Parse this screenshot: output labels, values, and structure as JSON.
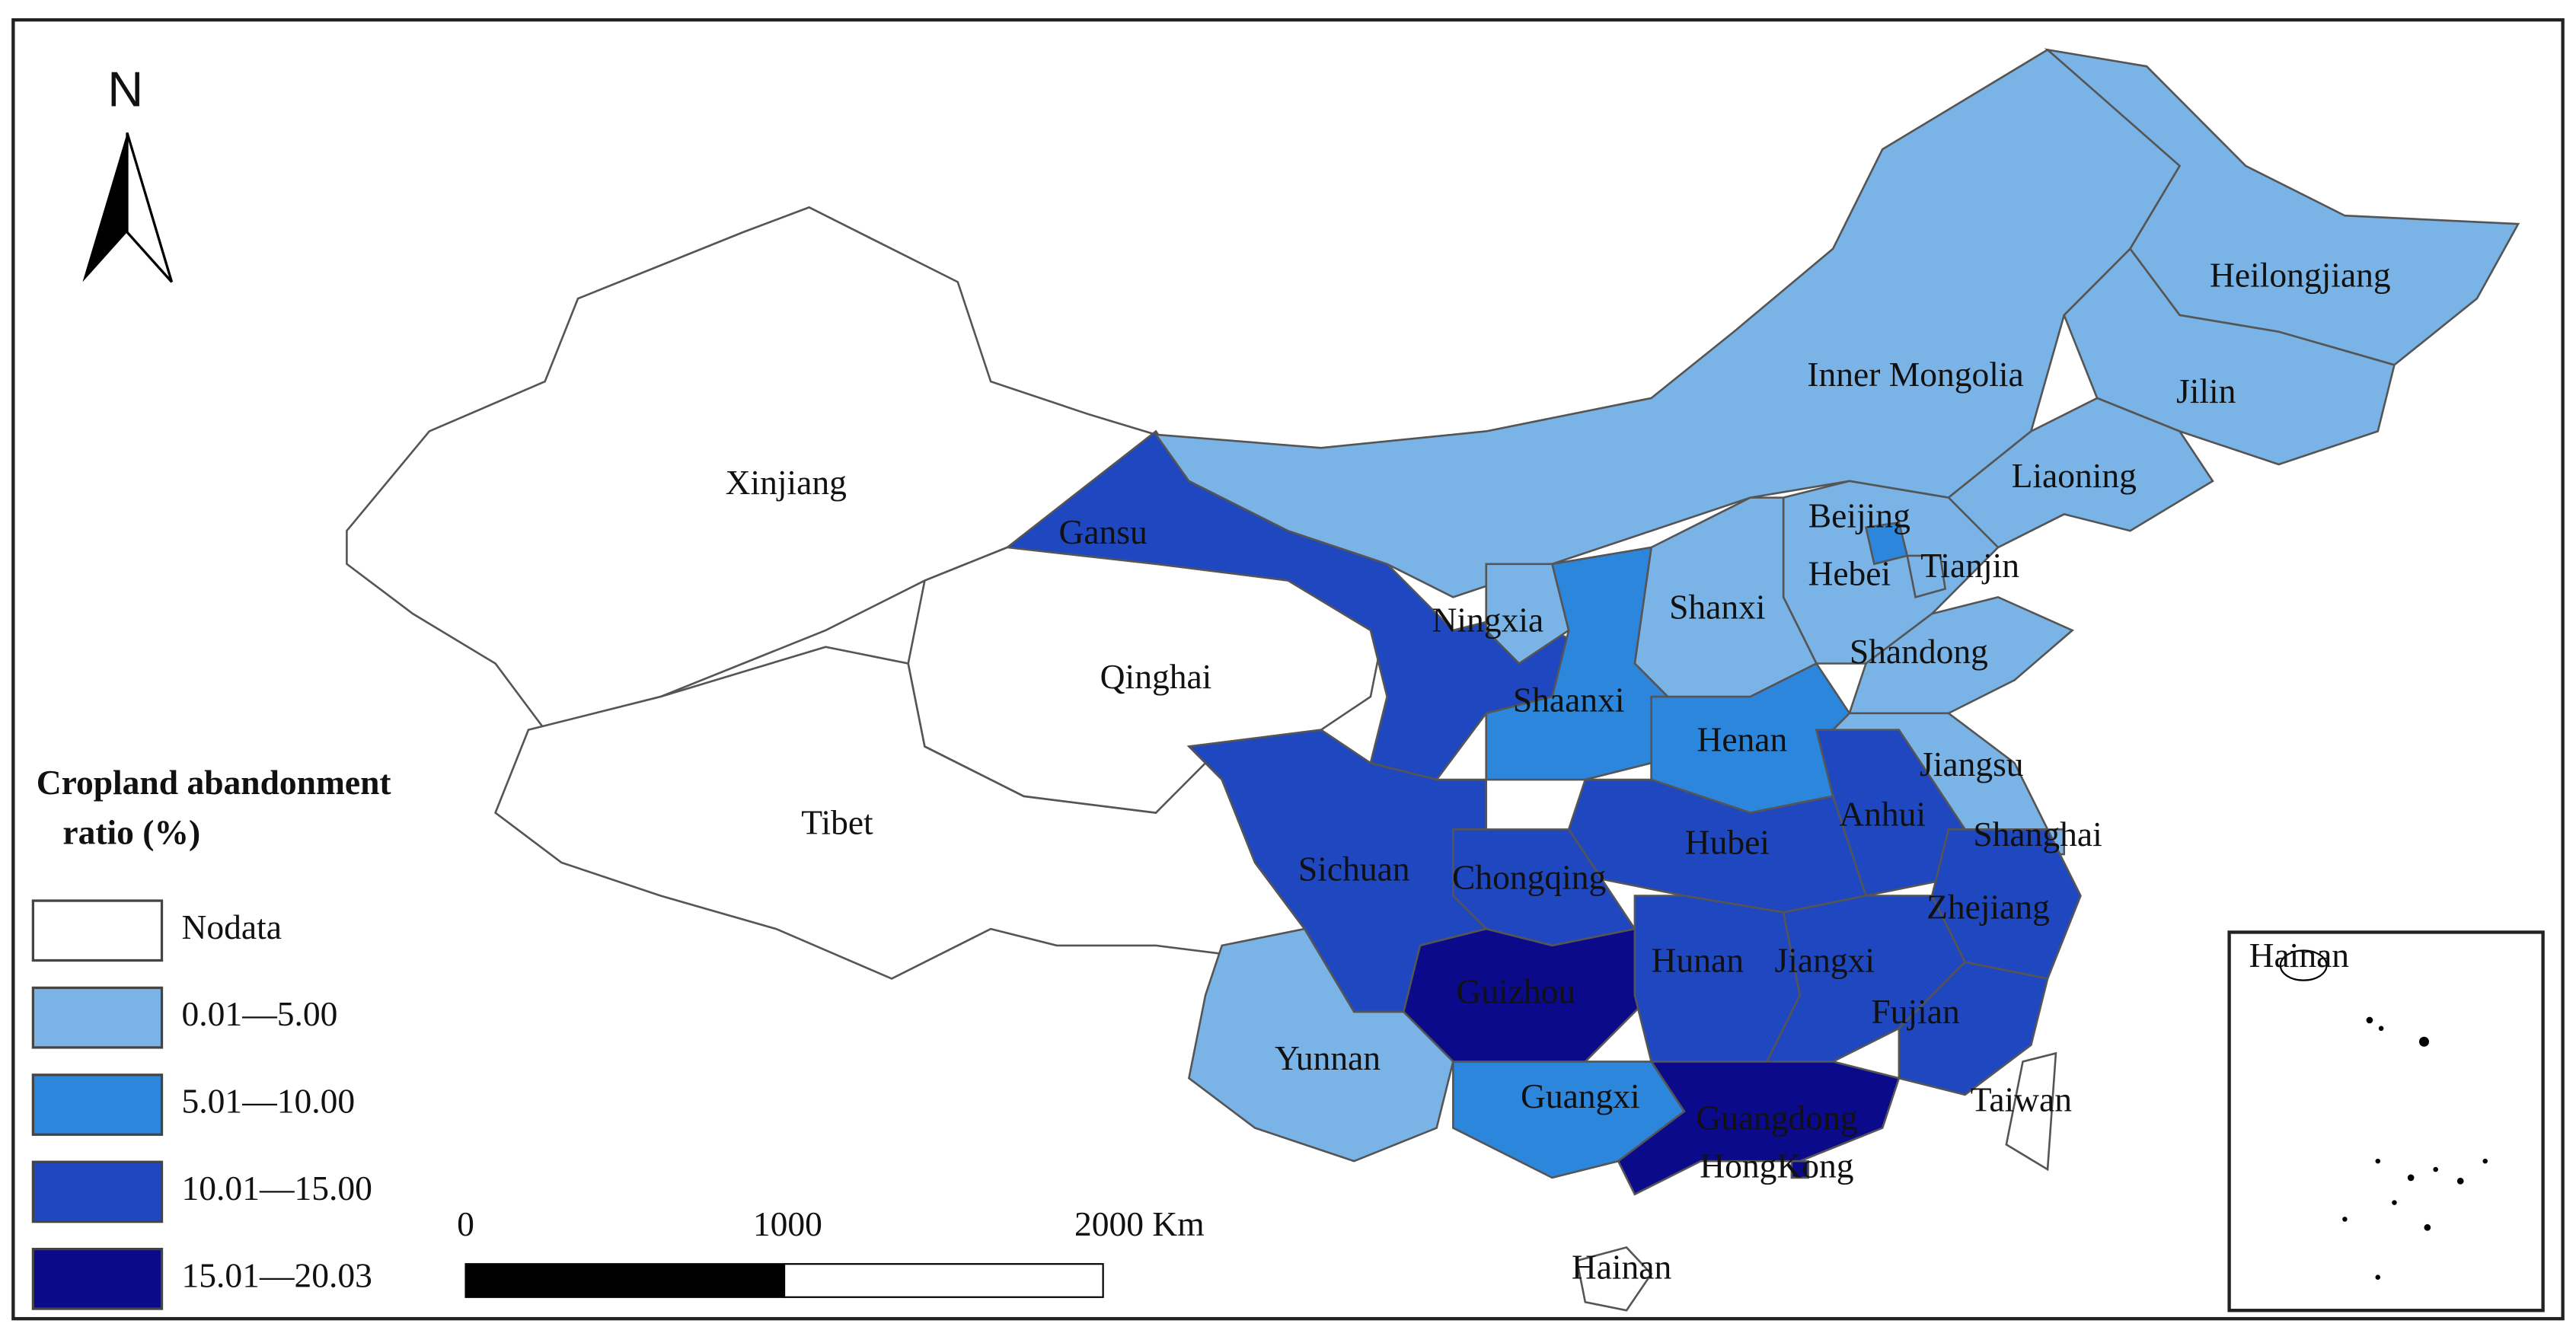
{
  "north": "N",
  "legend": {
    "title_line1": "Cropland abandonment",
    "title_line2": "ratio (%)",
    "items": [
      {
        "label": "Nodata",
        "color": "#ffffff"
      },
      {
        "label": "0.01—5.00",
        "color": "#7ab4e6"
      },
      {
        "label": "5.01—10.00",
        "color": "#2b86dc"
      },
      {
        "label": "10.01—15.00",
        "color": "#1f47bf"
      },
      {
        "label": "15.01—20.03",
        "color": "#0a0a8a"
      }
    ]
  },
  "scale_bar": {
    "labels": [
      "0",
      "1000",
      "2000 Km"
    ]
  },
  "inset_label": "Hainan",
  "provinces": [
    {
      "name": "Xinjiang",
      "class": 0
    },
    {
      "name": "Tibet",
      "class": 0
    },
    {
      "name": "Qinghai",
      "class": 0
    },
    {
      "name": "Gansu",
      "class": 3
    },
    {
      "name": "Inner Mongolia",
      "class": 1
    },
    {
      "name": "Heilongjiang",
      "class": 1
    },
    {
      "name": "Jilin",
      "class": 1
    },
    {
      "name": "Liaoning",
      "class": 1
    },
    {
      "name": "Hebei",
      "class": 1
    },
    {
      "name": "Beijing",
      "class": 2
    },
    {
      "name": "Tianjin",
      "class": 1
    },
    {
      "name": "Shanxi",
      "class": 1
    },
    {
      "name": "Shandong",
      "class": 1
    },
    {
      "name": "Ningxia",
      "class": 1
    },
    {
      "name": "Shaanxi",
      "class": 2
    },
    {
      "name": "Henan",
      "class": 2
    },
    {
      "name": "Jiangsu",
      "class": 1
    },
    {
      "name": "Anhui",
      "class": 3
    },
    {
      "name": "Shanghai",
      "class": 1
    },
    {
      "name": "Zhejiang",
      "class": 3
    },
    {
      "name": "Hubei",
      "class": 3
    },
    {
      "name": "Chongqing",
      "class": 3
    },
    {
      "name": "Sichuan",
      "class": 3
    },
    {
      "name": "Guizhou",
      "class": 4
    },
    {
      "name": "Hunan",
      "class": 3
    },
    {
      "name": "Jiangxi",
      "class": 3
    },
    {
      "name": "Fujian",
      "class": 3
    },
    {
      "name": "Yunnan",
      "class": 1
    },
    {
      "name": "Guangxi",
      "class": 2
    },
    {
      "name": "Guangdong",
      "class": 4
    },
    {
      "name": "HongKong",
      "class": 4
    },
    {
      "name": "Taiwan",
      "class": 0
    },
    {
      "name": "Hainan",
      "class": 0
    }
  ]
}
